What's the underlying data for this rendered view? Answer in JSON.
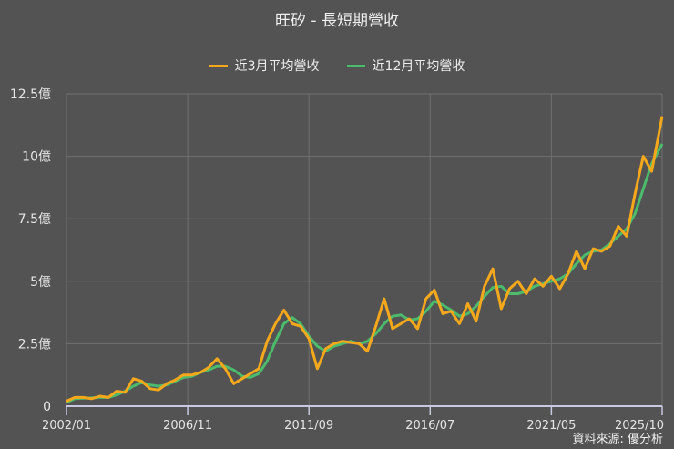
{
  "title": "旺矽 - 長短期營收",
  "legend": [
    {
      "label": "近3月平均營收",
      "color": "#f5a81c"
    },
    {
      "label": "近12月平均營收",
      "color": "#4cbb6c"
    }
  ],
  "source": "資料來源: 優分析",
  "colors": {
    "background": "#535353",
    "grid": "#707070",
    "axis": "#c8c8e0",
    "short": "#f5a81c",
    "long": "#4cbb6c"
  },
  "chart_data": {
    "type": "line",
    "title": "旺矽 - 長短期營收",
    "xlabel": "",
    "ylabel": "",
    "unit": "億",
    "ylim": [
      0,
      12.5
    ],
    "yticks": [
      0,
      2.5,
      5,
      7.5,
      10,
      12.5
    ],
    "ytick_labels": [
      "0",
      "2.5億",
      "5億",
      "7.5億",
      "10億",
      "12.5億"
    ],
    "xticks": [
      "2002/01",
      "2006/11",
      "2011/09",
      "2016/07",
      "2021/05",
      "2025/10"
    ],
    "grid": true,
    "legend_position": "top",
    "x_months": [
      0,
      4,
      8,
      12,
      16,
      20,
      24,
      28,
      32,
      36,
      40,
      44,
      48,
      52,
      56,
      60,
      64,
      68,
      72,
      76,
      80,
      84,
      88,
      92,
      96,
      100,
      104,
      108,
      112,
      116,
      120,
      124,
      128,
      132,
      136,
      140,
      144,
      148,
      152,
      156,
      160,
      164,
      168,
      172,
      176,
      180,
      184,
      188,
      192,
      196,
      200,
      204,
      208,
      212,
      216,
      220,
      224,
      228,
      232,
      236,
      240,
      244,
      248,
      252,
      256,
      260,
      264,
      268,
      272,
      276,
      280,
      285
    ],
    "series": [
      {
        "name": "近3月平均營收",
        "values": [
          0.2,
          0.35,
          0.35,
          0.3,
          0.4,
          0.35,
          0.6,
          0.55,
          1.1,
          1.0,
          0.7,
          0.65,
          0.9,
          1.05,
          1.25,
          1.25,
          1.35,
          1.55,
          1.9,
          1.5,
          0.9,
          1.1,
          1.3,
          1.5,
          2.6,
          3.3,
          3.85,
          3.3,
          3.2,
          2.7,
          1.5,
          2.3,
          2.5,
          2.6,
          2.55,
          2.5,
          2.2,
          3.2,
          4.3,
          3.1,
          3.3,
          3.5,
          3.1,
          4.3,
          4.65,
          3.7,
          3.8,
          3.3,
          4.1,
          3.4,
          4.8,
          5.5,
          3.9,
          4.7,
          5.0,
          4.5,
          5.1,
          4.8,
          5.2,
          4.7,
          5.3,
          6.2,
          5.5,
          6.3,
          6.2,
          6.4,
          7.2,
          6.8,
          8.5,
          10.0,
          9.4,
          11.6
        ]
      },
      {
        "name": "近12月平均營收",
        "values": [
          0.15,
          0.3,
          0.32,
          0.33,
          0.35,
          0.35,
          0.45,
          0.6,
          0.8,
          0.95,
          0.85,
          0.8,
          0.85,
          1.0,
          1.15,
          1.2,
          1.35,
          1.45,
          1.6,
          1.6,
          1.45,
          1.2,
          1.15,
          1.3,
          1.8,
          2.6,
          3.3,
          3.55,
          3.3,
          2.8,
          2.4,
          2.2,
          2.4,
          2.5,
          2.6,
          2.5,
          2.6,
          2.9,
          3.3,
          3.6,
          3.65,
          3.45,
          3.5,
          3.8,
          4.2,
          4.05,
          3.85,
          3.6,
          3.7,
          4.0,
          4.4,
          4.75,
          4.8,
          4.5,
          4.5,
          4.6,
          4.8,
          4.9,
          5.0,
          5.1,
          5.3,
          5.7,
          6.05,
          6.2,
          6.25,
          6.5,
          6.8,
          7.1,
          7.7,
          8.7,
          9.7,
          10.5
        ]
      }
    ]
  }
}
